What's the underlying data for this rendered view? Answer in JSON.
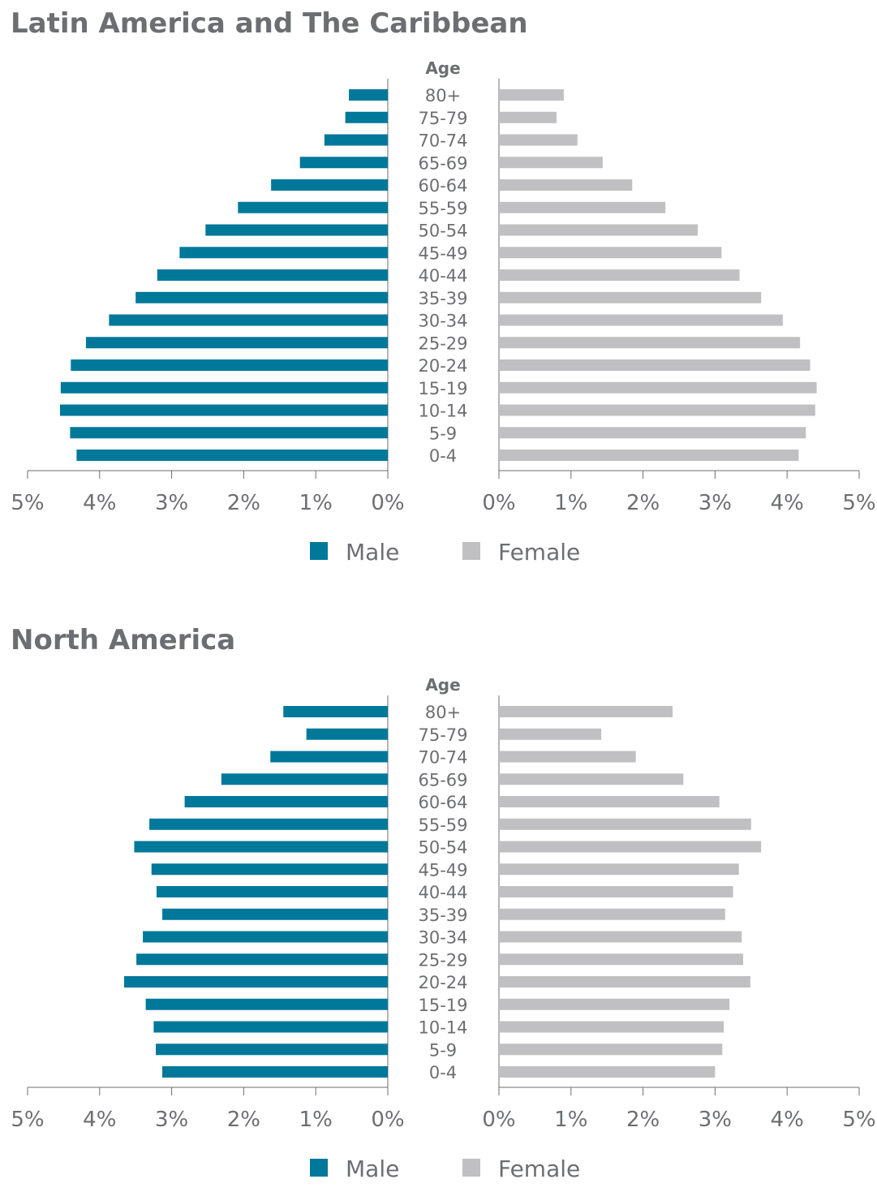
{
  "chart_data": [
    {
      "type": "bar",
      "orientation": "horizontal-population-pyramid",
      "title": "Latin America and The Caribbean",
      "category_label": "Age",
      "categories": [
        "80+",
        "75-79",
        "70-74",
        "65-69",
        "60-64",
        "55-59",
        "50-54",
        "45-49",
        "40-44",
        "35-39",
        "30-34",
        "25-29",
        "20-24",
        "15-19",
        "10-14",
        "5-9",
        "0-4"
      ],
      "series": [
        {
          "name": "Male",
          "color": "#00789a",
          "values": [
            0.54,
            0.59,
            0.88,
            1.22,
            1.62,
            2.08,
            2.53,
            2.89,
            3.2,
            3.5,
            3.87,
            4.19,
            4.4,
            4.54,
            4.55,
            4.41,
            4.32
          ]
        },
        {
          "name": "Female",
          "color": "#c0c0c2",
          "values": [
            0.9,
            0.8,
            1.09,
            1.44,
            1.85,
            2.31,
            2.76,
            3.09,
            3.34,
            3.64,
            3.94,
            4.18,
            4.32,
            4.41,
            4.39,
            4.26,
            4.16
          ]
        }
      ],
      "xlim": [
        0,
        5
      ],
      "xticks": [
        "0%",
        "1%",
        "2%",
        "3%",
        "4%",
        "5%"
      ],
      "legend": "bottom-center",
      "grid": false
    },
    {
      "type": "bar",
      "orientation": "horizontal-population-pyramid",
      "title": "North America",
      "category_label": "Age",
      "categories": [
        "80+",
        "75-79",
        "70-74",
        "65-69",
        "60-64",
        "55-59",
        "50-54",
        "45-49",
        "40-44",
        "35-39",
        "30-34",
        "25-29",
        "20-24",
        "15-19",
        "10-14",
        "5-9",
        "0-4"
      ],
      "series": [
        {
          "name": "Male",
          "color": "#00789a",
          "values": [
            1.45,
            1.13,
            1.63,
            2.31,
            2.82,
            3.31,
            3.52,
            3.28,
            3.21,
            3.13,
            3.4,
            3.49,
            3.66,
            3.36,
            3.25,
            3.22,
            3.13
          ]
        },
        {
          "name": "Female",
          "color": "#c0c0c2",
          "values": [
            2.41,
            1.42,
            1.9,
            2.56,
            3.06,
            3.5,
            3.64,
            3.33,
            3.25,
            3.14,
            3.37,
            3.39,
            3.49,
            3.2,
            3.12,
            3.1,
            3.0
          ]
        }
      ],
      "xlim": [
        0,
        5
      ],
      "xticks": [
        "0%",
        "1%",
        "2%",
        "3%",
        "4%",
        "5%"
      ],
      "legend": "bottom-center",
      "grid": false
    }
  ]
}
